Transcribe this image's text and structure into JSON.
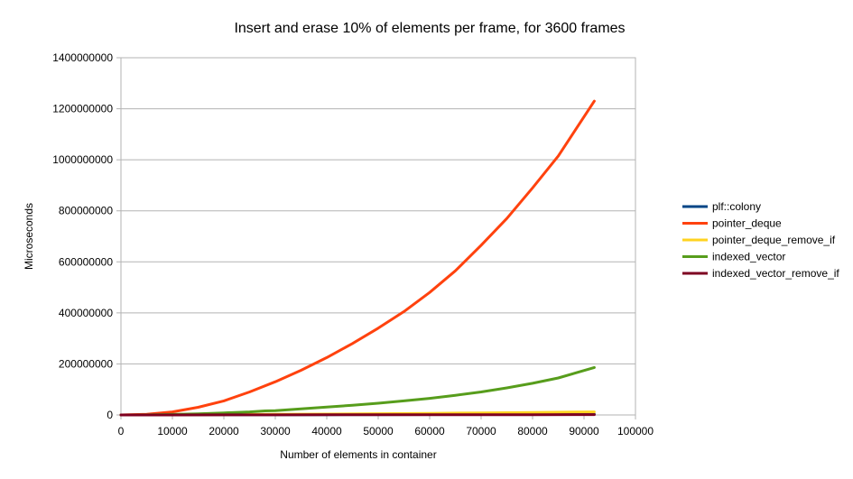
{
  "chart_data": {
    "type": "line",
    "title": "Insert and erase 10% of elements per frame, for 3600 frames",
    "xlabel": "Number of elements in container",
    "ylabel": "Microseconds",
    "xlim": [
      0,
      100000
    ],
    "ylim": [
      0,
      1400000000
    ],
    "x_ticks": [
      0,
      10000,
      20000,
      30000,
      40000,
      50000,
      60000,
      70000,
      80000,
      90000,
      100000
    ],
    "x_tick_labels": [
      "0",
      "10000",
      "20000",
      "30000",
      "40000",
      "50000",
      "60000",
      "70000",
      "80000",
      "90000",
      "100000"
    ],
    "y_ticks": [
      0,
      200000000,
      400000000,
      600000000,
      800000000,
      1000000000,
      1200000000,
      1400000000
    ],
    "y_tick_labels": [
      "0",
      "200000000",
      "400000000",
      "600000000",
      "800000000",
      "1000000000",
      "1200000000",
      "1400000000"
    ],
    "grid": "horizontal",
    "legend_position": "right",
    "series": [
      {
        "name": "plf::colony",
        "color": "#004586",
        "x": [
          0,
          5000,
          10000,
          20000,
          30000,
          40000,
          50000,
          60000,
          70000,
          80000,
          92000
        ],
        "y": [
          0,
          150000,
          300000,
          600000,
          900000,
          1200000,
          1500000,
          1800000,
          2100000,
          2400000,
          2800000
        ]
      },
      {
        "name": "pointer_deque",
        "color": "#ff420e",
        "x": [
          0,
          5000,
          10000,
          15000,
          20000,
          25000,
          30000,
          35000,
          40000,
          45000,
          50000,
          55000,
          60000,
          65000,
          70000,
          75000,
          80000,
          85000,
          92000
        ],
        "y": [
          0,
          3000000,
          12000000,
          30000000,
          55000000,
          90000000,
          130000000,
          175000000,
          225000000,
          280000000,
          340000000,
          405000000,
          480000000,
          565000000,
          665000000,
          770000000,
          890000000,
          1015000000,
          1230000000
        ]
      },
      {
        "name": "pointer_deque_remove_if",
        "color": "#ffd320",
        "x": [
          0,
          10000,
          20000,
          30000,
          40000,
          50000,
          60000,
          70000,
          80000,
          92000
        ],
        "y": [
          0,
          500000,
          1500000,
          2500000,
          3500000,
          5000000,
          6500000,
          8000000,
          10000000,
          12000000
        ]
      },
      {
        "name": "indexed_vector",
        "color": "#579d1c",
        "x": [
          0,
          5000,
          10000,
          15000,
          20000,
          25000,
          28000,
          30000,
          35000,
          40000,
          45000,
          50000,
          55000,
          60000,
          65000,
          70000,
          75000,
          80000,
          85000,
          92000
        ],
        "y": [
          0,
          500000,
          2000000,
          4500000,
          8000000,
          12000000,
          16000000,
          16500000,
          24000000,
          31000000,
          38000000,
          46000000,
          55000000,
          65000000,
          77000000,
          90000000,
          106000000,
          124000000,
          145000000,
          186000000
        ]
      },
      {
        "name": "indexed_vector_remove_if",
        "color": "#7e0021",
        "x": [
          0,
          10000,
          20000,
          30000,
          40000,
          50000,
          60000,
          70000,
          80000,
          92000
        ],
        "y": [
          0,
          100000,
          250000,
          400000,
          550000,
          700000,
          850000,
          1000000,
          1150000,
          1300000
        ]
      }
    ]
  }
}
